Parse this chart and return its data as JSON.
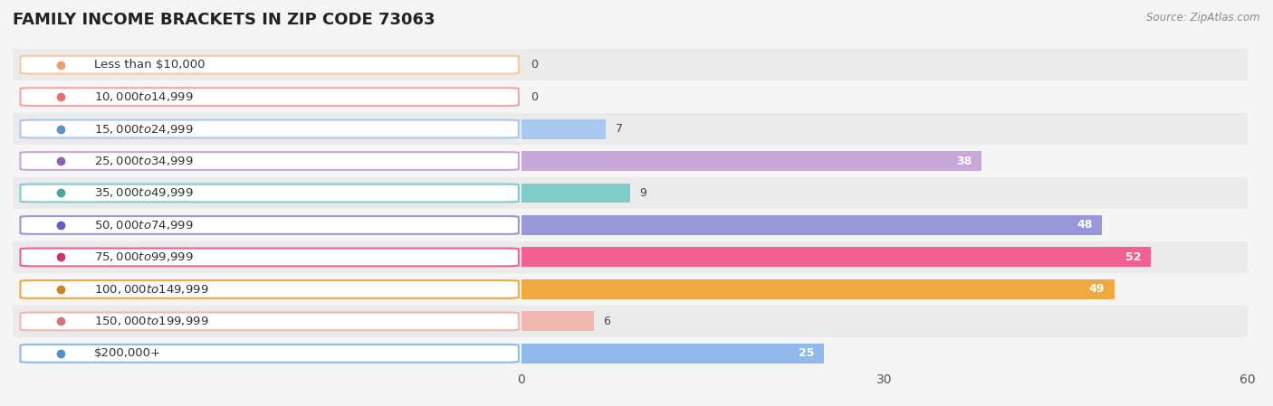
{
  "title": "FAMILY INCOME BRACKETS IN ZIP CODE 73063",
  "source": "Source: ZipAtlas.com",
  "categories": [
    "Less than $10,000",
    "$10,000 to $14,999",
    "$15,000 to $24,999",
    "$25,000 to $34,999",
    "$35,000 to $49,999",
    "$50,000 to $74,999",
    "$75,000 to $99,999",
    "$100,000 to $149,999",
    "$150,000 to $199,999",
    "$200,000+"
  ],
  "values": [
    0,
    0,
    7,
    38,
    9,
    48,
    52,
    49,
    6,
    25
  ],
  "bar_colors": [
    "#F5C8A0",
    "#F5A4A4",
    "#A8C8F0",
    "#C8A8D8",
    "#80CCC8",
    "#9898D8",
    "#F06090",
    "#F0A840",
    "#F0B8B0",
    "#90B8E8"
  ],
  "dot_colors": [
    "#E8A070",
    "#E87070",
    "#6090D0",
    "#9060B0",
    "#40A8A0",
    "#6060C0",
    "#D03070",
    "#D08020",
    "#D07878",
    "#5090D0"
  ],
  "xlim": [
    0,
    60
  ],
  "xticks": [
    0,
    30,
    60
  ],
  "bg_color": "#f5f5f5",
  "title_fontsize": 13,
  "label_fontsize": 9.5,
  "value_fontsize": 9,
  "bar_height": 0.62,
  "value_threshold": 10,
  "row_bg_colors": [
    "#ebebeb",
    "#f5f5f5"
  ]
}
